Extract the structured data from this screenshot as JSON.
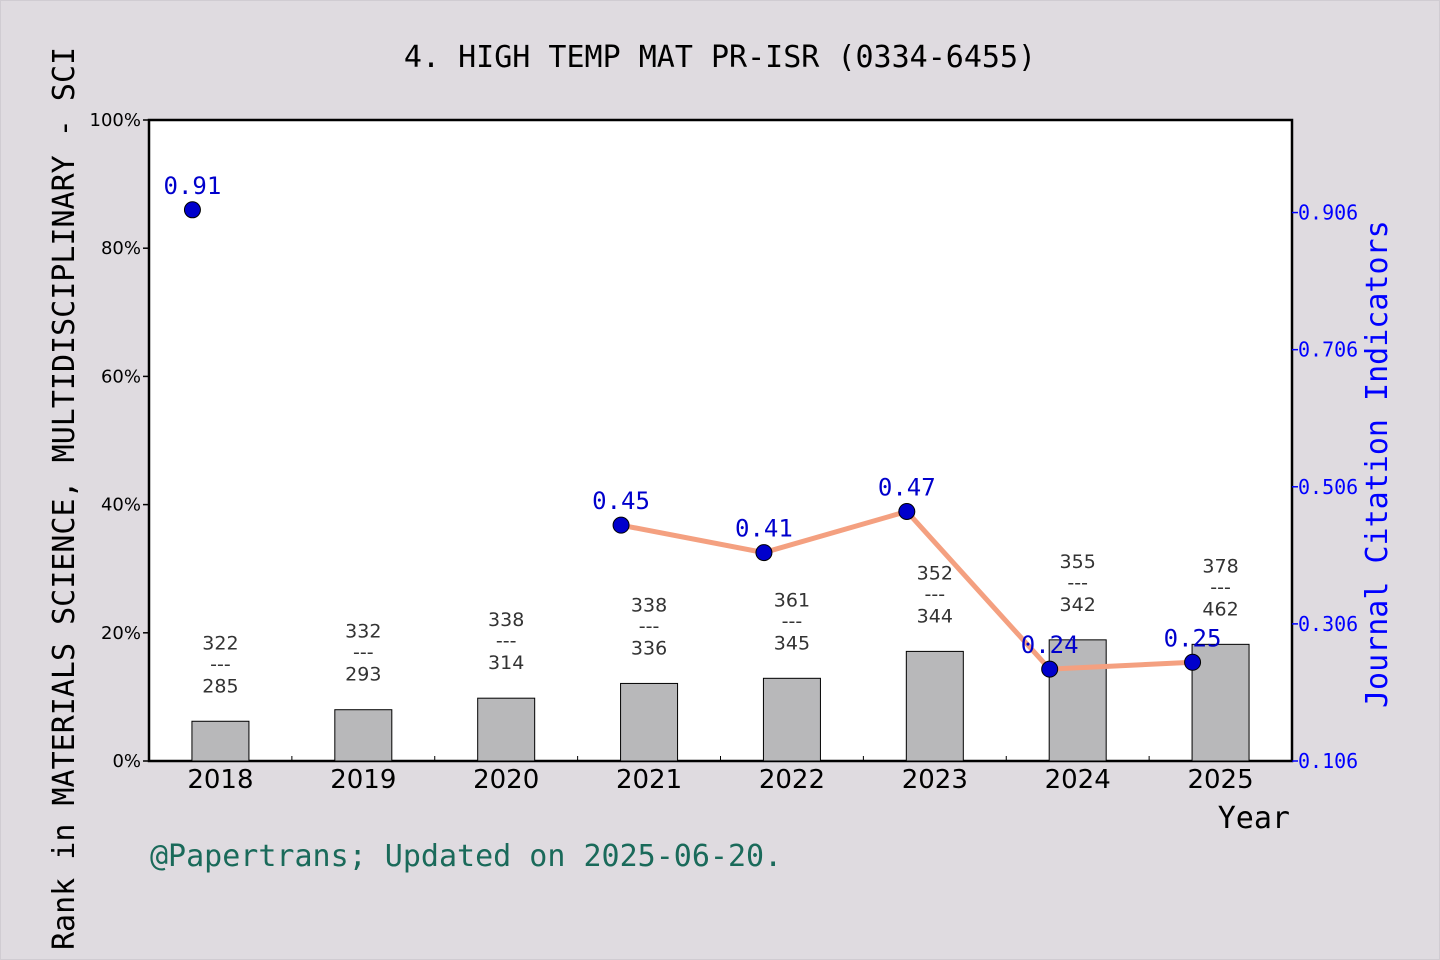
{
  "chart_data": {
    "type": "bar",
    "title": "4. HIGH TEMP MAT PR-ISR (0334-6455)",
    "xlabel": "Year",
    "ylabel_left": "Rank in MATERIALS SCIENCE, MULTIDISCIPLINARY - SCI",
    "ylabel_right": "Journal Citation Indicators",
    "categories": [
      "2018",
      "2019",
      "2020",
      "2021",
      "2022",
      "2023",
      "2024",
      "2025"
    ],
    "bars": {
      "values_percent": [
        6.2,
        8.0,
        9.8,
        12.1,
        12.9,
        17.1,
        18.9,
        18.2
      ],
      "rank_labels": [
        {
          "top": "322",
          "sep": "---",
          "bottom": "285"
        },
        {
          "top": "332",
          "sep": "---",
          "bottom": "293"
        },
        {
          "top": "338",
          "sep": "---",
          "bottom": "314"
        },
        {
          "top": "338",
          "sep": "---",
          "bottom": "336"
        },
        {
          "top": "361",
          "sep": "---",
          "bottom": "345"
        },
        {
          "top": "352",
          "sep": "---",
          "bottom": "344"
        },
        {
          "top": "355",
          "sep": "---",
          "bottom": "342"
        },
        {
          "top": "378",
          "sep": "---",
          "bottom": "462"
        }
      ],
      "color": "#b8b8ba"
    },
    "line": {
      "values": [
        0.91,
        null,
        null,
        0.45,
        0.41,
        0.47,
        0.24,
        0.25
      ],
      "point_labels": [
        "0.91",
        "",
        "",
        "0.45",
        "0.41",
        "0.47",
        "0.24",
        "0.25"
      ],
      "marker_color": "#0000cc",
      "line_color": "#f4a080",
      "label_color": "#0000cc"
    },
    "ylim_left": [
      0,
      100
    ],
    "yticks_left": [
      "0%",
      "20%",
      "40%",
      "60%",
      "80%",
      "100%"
    ],
    "ylim_right": [
      0.106,
      1.041
    ],
    "yticks_right": [
      "0.106",
      "0.306",
      "0.506",
      "0.706",
      "0.906"
    ],
    "grid": false
  },
  "footer": "@Papertrans; Updated on 2025-06-20.",
  "colors": {
    "background": "#dfdbe0",
    "plot_background": "#ffffff",
    "right_axis": "#0000ff",
    "footer": "#1a6a5a"
  }
}
